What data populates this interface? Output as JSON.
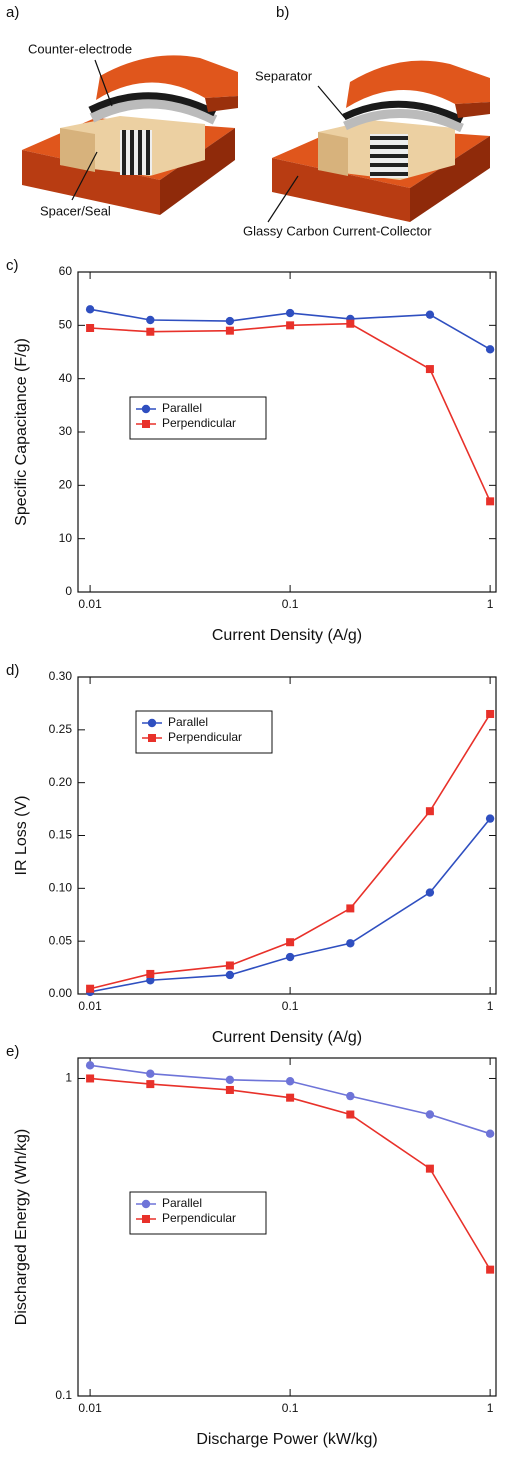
{
  "diagram": {
    "panels": [
      {
        "label": "a)",
        "callouts": [
          "Counter-electrode",
          "Spacer/Seal"
        ]
      },
      {
        "label": "b)",
        "callouts": [
          "Separator",
          "Glassy Carbon Current-Collector"
        ]
      }
    ]
  },
  "chart_data": [
    {
      "type": "line",
      "panel": "c)",
      "xlabel": "Current Density (A/g)",
      "ylabel": "Specific Capacitance (F/g)",
      "xscale": "log",
      "x": [
        0.01,
        0.02,
        0.05,
        0.1,
        0.2,
        0.5,
        1
      ],
      "xlim": [
        0.0087,
        1.07
      ],
      "xticks": [
        0.01,
        0.1,
        1
      ],
      "ylim": [
        0,
        60
      ],
      "yticks": [
        0,
        10,
        20,
        30,
        40,
        50,
        60
      ],
      "legend": "center left",
      "series": [
        {
          "name": "Parallel",
          "color": "#2f4fc0",
          "marker": "circle",
          "values": [
            53,
            51,
            50.8,
            52.3,
            51.2,
            52,
            45.5
          ]
        },
        {
          "name": "Perpendicular",
          "color": "#e8312a",
          "marker": "square",
          "values": [
            49.5,
            48.8,
            49,
            50,
            50.3,
            41.8,
            17
          ]
        }
      ]
    },
    {
      "type": "line",
      "panel": "d)",
      "xlabel": "Current Density (A/g)",
      "ylabel": "IR Loss (V)",
      "xscale": "log",
      "x": [
        0.01,
        0.02,
        0.05,
        0.1,
        0.2,
        0.5,
        1
      ],
      "xlim": [
        0.0087,
        1.07
      ],
      "xticks": [
        0.01,
        0.1,
        1
      ],
      "ylim": [
        0,
        0.3
      ],
      "yticks": [
        {
          "value": 0,
          "label": "0.00"
        },
        0.05,
        {
          "value": 0.1,
          "label": "0.10"
        },
        0.15,
        {
          "value": 0.2,
          "label": "0.20"
        },
        0.25,
        {
          "value": 0.3,
          "label": "0.30"
        }
      ],
      "legend": "upper left",
      "series": [
        {
          "name": "Parallel",
          "color": "#2f4fc0",
          "marker": "circle",
          "values": [
            0.002,
            0.013,
            0.018,
            0.035,
            0.048,
            0.096,
            0.166
          ]
        },
        {
          "name": "Perpendicular",
          "color": "#e8312a",
          "marker": "square",
          "values": [
            0.005,
            0.019,
            0.027,
            0.049,
            0.081,
            0.173,
            0.265
          ]
        }
      ]
    },
    {
      "type": "line",
      "panel": "e)",
      "xlabel": "Discharge Power (kW/kg)",
      "ylabel": "Discharged Energy (Wh/kg)",
      "xscale": "log",
      "yscale": "log",
      "x": [
        0.01,
        0.02,
        0.05,
        0.1,
        0.2,
        0.5,
        1
      ],
      "xlim": [
        0.0087,
        1.07
      ],
      "xticks": [
        0.01,
        0.1,
        1
      ],
      "ylim": [
        0.1,
        1.16
      ],
      "yticks": [
        0.1,
        1
      ],
      "legend": "center left",
      "series": [
        {
          "name": "Parallel",
          "color": "#6e74d8",
          "marker": "circle",
          "values": [
            1.1,
            1.035,
            0.99,
            0.98,
            0.88,
            0.77,
            0.67
          ]
        },
        {
          "name": "Perpendicular",
          "color": "#e8312a",
          "marker": "square",
          "values": [
            1.0,
            0.96,
            0.92,
            0.87,
            0.77,
            0.52,
            0.25
          ]
        }
      ]
    }
  ]
}
